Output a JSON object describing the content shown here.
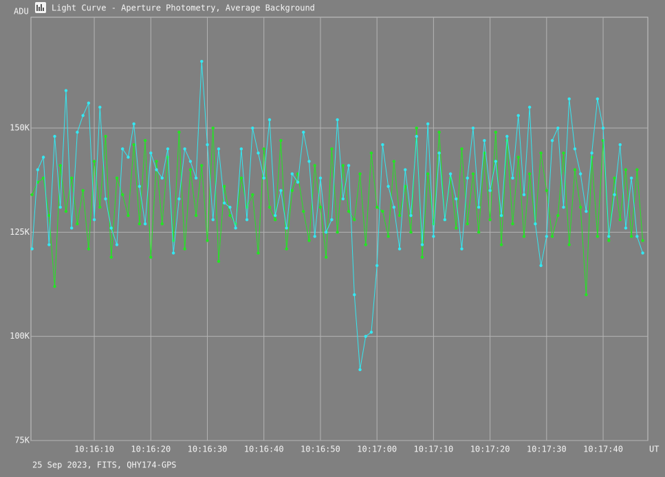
{
  "chart_data": {
    "type": "line",
    "title": "Light Curve - Aperture Photometry, Average Background",
    "ylabel": "ADU",
    "xlabel": "UT",
    "footer": "25 Sep 2023, FITS, QHY174-GPS",
    "grid": true,
    "marker": "circle",
    "xlim": [
      36958.8,
      37067.9
    ],
    "ylim": [
      75000,
      176600
    ],
    "yticks": [
      {
        "value": 75000,
        "label": "75K"
      },
      {
        "value": 100000,
        "label": "100K"
      },
      {
        "value": 125000,
        "label": "125K"
      },
      {
        "value": 150000,
        "label": "150K"
      }
    ],
    "xticks": [
      {
        "value": 36970,
        "label": "10:16:10"
      },
      {
        "value": 36980,
        "label": "10:16:20"
      },
      {
        "value": 36990,
        "label": "10:16:30"
      },
      {
        "value": 37000,
        "label": "10:16:40"
      },
      {
        "value": 37010,
        "label": "10:16:50"
      },
      {
        "value": 37020,
        "label": "10:17:00"
      },
      {
        "value": 37030,
        "label": "10:17:10"
      },
      {
        "value": 37040,
        "label": "10:17:20"
      },
      {
        "value": 37050,
        "label": "10:17:30"
      },
      {
        "value": 37060,
        "label": "10:17:40"
      }
    ],
    "x": [
      36959,
      36960,
      36961,
      36962,
      36963,
      36964,
      36965,
      36966,
      36967,
      36968,
      36969,
      36970,
      36971,
      36972,
      36973,
      36974,
      36975,
      36976,
      36977,
      36978,
      36979,
      36980,
      36981,
      36982,
      36983,
      36984,
      36985,
      36986,
      36987,
      36988,
      36989,
      36990,
      36991,
      36992,
      36993,
      36994,
      36995,
      36996,
      36997,
      36998,
      36999,
      37000,
      37001,
      37002,
      37003,
      37004,
      37005,
      37006,
      37007,
      37008,
      37009,
      37010,
      37011,
      37012,
      37013,
      37014,
      37015,
      37016,
      37017,
      37018,
      37019,
      37020,
      37021,
      37022,
      37023,
      37024,
      37025,
      37026,
      37027,
      37028,
      37029,
      37030,
      37031,
      37032,
      37033,
      37034,
      37035,
      37036,
      37037,
      37038,
      37039,
      37040,
      37041,
      37042,
      37043,
      37044,
      37045,
      37046,
      37047,
      37048,
      37049,
      37050,
      37051,
      37052,
      37053,
      37054,
      37055,
      37056,
      37057,
      37058,
      37059,
      37060,
      37061,
      37062,
      37063,
      37064,
      37065,
      37066,
      37067
    ],
    "series": [
      {
        "color": "#22e622",
        "values": [
          134000,
          137000,
          138000,
          129000,
          112000,
          141000,
          130000,
          138000,
          127000,
          135000,
          121000,
          142000,
          131000,
          148000,
          119000,
          138000,
          134000,
          129000,
          146000,
          127000,
          147000,
          119000,
          142000,
          127000,
          143000,
          123000,
          149000,
          121000,
          140000,
          129000,
          141000,
          123000,
          150000,
          118000,
          136000,
          129000,
          127000,
          138000,
          131000,
          134000,
          120000,
          145000,
          131000,
          128000,
          147000,
          121000,
          135000,
          139000,
          130000,
          123000,
          141000,
          131000,
          119000,
          145000,
          125000,
          141000,
          130000,
          128000,
          139000,
          122000,
          144000,
          131000,
          130000,
          124000,
          142000,
          129000,
          136000,
          125000,
          150000,
          119000,
          139000,
          127000,
          149000,
          128000,
          138000,
          126000,
          145000,
          127000,
          139000,
          125000,
          144000,
          128000,
          149000,
          122000,
          147000,
          127000,
          143000,
          124000,
          139000,
          127000,
          144000,
          135000,
          124000,
          129000,
          144000,
          122000,
          140000,
          131000,
          110000,
          143000,
          124000,
          147000,
          123000,
          138000,
          128000,
          140000,
          124000,
          140000,
          123000
        ]
      },
      {
        "color": "#33e8f2",
        "values": [
          121000,
          140000,
          143000,
          122000,
          148000,
          131000,
          159000,
          126000,
          149000,
          153000,
          156000,
          128000,
          155000,
          133000,
          126000,
          122000,
          145000,
          143000,
          151000,
          136000,
          127000,
          144000,
          140000,
          138000,
          145000,
          120000,
          133000,
          145000,
          142000,
          138000,
          166000,
          146000,
          128000,
          145000,
          132000,
          131000,
          126000,
          145000,
          128000,
          150000,
          144000,
          138000,
          152000,
          129000,
          135000,
          126000,
          139000,
          137000,
          149000,
          142000,
          124000,
          138000,
          125000,
          128000,
          152000,
          133000,
          141000,
          110000,
          92000,
          100000,
          101000,
          117000,
          146000,
          136000,
          131000,
          121000,
          140000,
          129000,
          148000,
          122000,
          151000,
          124000,
          144000,
          128000,
          139000,
          133000,
          121000,
          138000,
          150000,
          131000,
          147000,
          135000,
          142000,
          129000,
          148000,
          138000,
          153000,
          134000,
          155000,
          127000,
          117000,
          124000,
          147000,
          150000,
          131000,
          157000,
          145000,
          139000,
          130000,
          144000,
          157000,
          150000,
          124000,
          134000,
          146000,
          126000,
          138000,
          124000,
          120000
        ]
      }
    ]
  }
}
